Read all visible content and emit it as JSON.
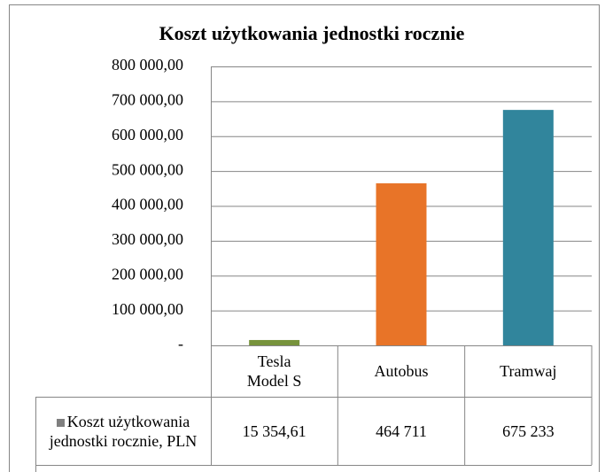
{
  "chart_data": {
    "type": "bar",
    "title": "Koszt użytkowania  jednostki rocznie",
    "categories": [
      "Tesla Model S",
      "Autobus",
      "Tramwaj"
    ],
    "series": [
      {
        "name": "Koszt użytkowania jednostki rocznie, PLN",
        "color": "#7f7f7f",
        "colors": [
          "#77933c",
          "#e87428",
          "#31859c"
        ],
        "values": [
          15354.61,
          464711,
          675233
        ],
        "value_labels": [
          "15 354,61",
          "464 711",
          "675 233"
        ]
      }
    ],
    "ylim": [
      0,
      800000
    ],
    "yticks": [
      {
        "value": 0,
        "label": "-"
      },
      {
        "value": 100000,
        "label": "100 000,00"
      },
      {
        "value": 200000,
        "label": "200 000,00"
      },
      {
        "value": 300000,
        "label": "300 000,00"
      },
      {
        "value": 400000,
        "label": "400 000,00"
      },
      {
        "value": 500000,
        "label": "500 000,00"
      },
      {
        "value": 600000,
        "label": "600 000,00"
      },
      {
        "value": 700000,
        "label": "700 000,00"
      },
      {
        "value": 800000,
        "label": "800 000,00"
      }
    ],
    "grid": true
  }
}
